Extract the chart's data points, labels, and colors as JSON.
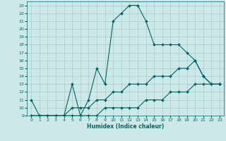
{
  "xlabel": "Humidex (Indice chaleur)",
  "bg_color": "#cce8e8",
  "grid_color": "#aacccc",
  "line_color": "#006666",
  "xlim": [
    -0.5,
    23.5
  ],
  "ylim": [
    9,
    23.5
  ],
  "xticks": [
    0,
    1,
    2,
    3,
    4,
    5,
    6,
    7,
    8,
    9,
    10,
    11,
    12,
    13,
    14,
    15,
    16,
    17,
    18,
    19,
    20,
    21,
    22,
    23
  ],
  "yticks": [
    9,
    10,
    11,
    12,
    13,
    14,
    15,
    16,
    17,
    18,
    19,
    20,
    21,
    22,
    23
  ],
  "series": [
    {
      "x": [
        0,
        1,
        2,
        3,
        4,
        5,
        6,
        7,
        8,
        9,
        10,
        11,
        12,
        13,
        14,
        15,
        16,
        17,
        18,
        19,
        20,
        21,
        22,
        23
      ],
      "y": [
        11,
        9,
        9,
        9,
        9,
        13,
        9,
        11,
        15,
        13,
        21,
        22,
        23,
        23,
        21,
        18,
        18,
        18,
        18,
        17,
        16,
        14,
        13,
        13
      ]
    },
    {
      "x": [
        0,
        1,
        2,
        3,
        4,
        5,
        6,
        7,
        8,
        9,
        10,
        11,
        12,
        13,
        14,
        15,
        16,
        17,
        18,
        19,
        20,
        21,
        22,
        23
      ],
      "y": [
        9,
        9,
        9,
        9,
        9,
        10,
        10,
        10,
        11,
        11,
        12,
        12,
        13,
        13,
        13,
        14,
        14,
        14,
        15,
        15,
        16,
        14,
        13,
        13
      ]
    },
    {
      "x": [
        0,
        1,
        2,
        3,
        4,
        5,
        6,
        7,
        8,
        9,
        10,
        11,
        12,
        13,
        14,
        15,
        16,
        17,
        18,
        19,
        20,
        21,
        22,
        23
      ],
      "y": [
        9,
        9,
        9,
        9,
        9,
        9,
        9,
        9,
        9,
        10,
        10,
        10,
        10,
        10,
        11,
        11,
        11,
        12,
        12,
        12,
        13,
        13,
        13,
        13
      ]
    }
  ]
}
